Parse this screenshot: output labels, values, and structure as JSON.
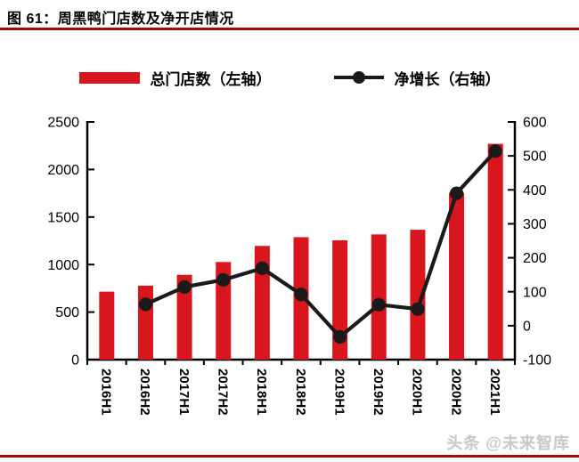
{
  "header": {
    "title": "图 61：周黑鸭门店数及净开店情况"
  },
  "legend": {
    "bar_series_label": "总门店数（左轴）",
    "line_series_label": "净增长（右轴）"
  },
  "colors": {
    "bar_red": "#d9161e",
    "line_black": "#1a1a1a",
    "axis_black": "#000000",
    "rule_dark_red": "#9b0c0e",
    "watermark_gray": "#c9c9c9"
  },
  "chart_data": {
    "type": "bar+line",
    "title": "周黑鸭门店数及净开店情况",
    "categories": [
      "2016H1",
      "2016H2",
      "2017H1",
      "2017H2",
      "2018H1",
      "2018H2",
      "2019H1",
      "2019H2",
      "2020H1",
      "2020H2",
      "2021H1"
    ],
    "series": [
      {
        "name": "总门店数（左轴）",
        "type": "bar",
        "axis": "left",
        "color": "#d9161e",
        "values": [
          715,
          778,
          892,
          1027,
          1196,
          1288,
          1255,
          1317,
          1366,
          1756,
          2270
        ]
      },
      {
        "name": "净增长（右轴）",
        "type": "line",
        "axis": "right",
        "color": "#1a1a1a",
        "values": [
          null,
          63,
          114,
          135,
          169,
          92,
          -33,
          62,
          49,
          390,
          514
        ]
      }
    ],
    "left_axis": {
      "min": 0,
      "max": 2500,
      "step": 500
    },
    "right_axis": {
      "min": -100,
      "max": 600,
      "step": 100
    },
    "grid": false,
    "legend_position": "top"
  },
  "watermark": {
    "text": "头条 @未来智库"
  }
}
